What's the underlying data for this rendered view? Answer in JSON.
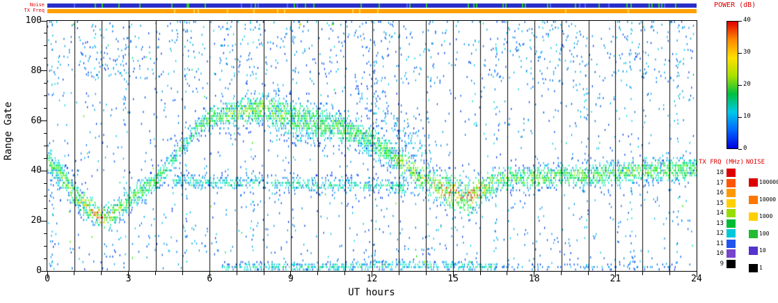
{
  "labels": {
    "x_axis": "UT hours",
    "y_axis": "Range Gate",
    "noise_strip": "Noise",
    "tx_strip": "TX Freq",
    "power_title": "POWER (dB)",
    "tx_title": "TX FRQ (MHz)",
    "noise_title": "NOISE"
  },
  "chart_data": {
    "type": "heatmap",
    "title": "",
    "xlabel": "UT hours",
    "ylabel": "Range Gate",
    "xlim": [
      0,
      24
    ],
    "ylim": [
      0,
      100
    ],
    "x_major_ticks": [
      0,
      3,
      6,
      9,
      12,
      15,
      18,
      21,
      24
    ],
    "x_minor_step": 1,
    "y_major_ticks": [
      0,
      20,
      40,
      60,
      80,
      100
    ],
    "y_minor_step": 5,
    "grid": "vertical-hour-lines",
    "hour_line_color": "#000000",
    "seed": 1337,
    "power_colorbar": {
      "title": "POWER (dB)",
      "min": 0,
      "max": 40,
      "ticks": [
        0,
        10,
        20,
        30,
        40
      ],
      "gradient": [
        "#0000e0",
        "#0066ff",
        "#00c8e8",
        "#00c040",
        "#a8e000",
        "#ffe000",
        "#ff8800",
        "#e00000"
      ]
    },
    "tx_colorbar": {
      "title": "TX FRQ (MHz)",
      "labels": [
        "18",
        "17",
        "16",
        "15",
        "14",
        "13",
        "12",
        "11",
        "10",
        "9"
      ],
      "colors": [
        "#dd0000",
        "#ff5500",
        "#ff9900",
        "#ffcf00",
        "#99dd00",
        "#00bb33",
        "#00c8d8",
        "#2255ee",
        "#7744cc",
        "#000000"
      ]
    },
    "noise_colorbar": {
      "title": "NOISE",
      "labels": [
        "100000",
        "10000",
        "1000",
        "100",
        "10",
        "1"
      ],
      "colors": [
        "#dd0000",
        "#ff7700",
        "#ffd000",
        "#22bb33",
        "#5533cc",
        "#000000"
      ]
    },
    "strips": {
      "noise_base": "#2a2ec8",
      "noise_speck": "#2ec82e",
      "noise_alt": "#5560ff",
      "tx_base": "#ffa000",
      "tx_speck": "#ffd24d"
    },
    "bands": [
      {
        "name": "main-echo-band",
        "fill": 0.6,
        "points": [
          [
            0,
            44
          ],
          [
            0.5,
            38
          ],
          [
            1,
            30
          ],
          [
            1.5,
            25
          ],
          [
            2,
            21
          ],
          [
            2.5,
            23
          ],
          [
            3,
            28
          ],
          [
            3.5,
            32
          ],
          [
            4,
            36
          ],
          [
            4.5,
            42
          ],
          [
            5,
            50
          ],
          [
            5.5,
            57
          ],
          [
            6,
            61
          ],
          [
            7,
            64
          ],
          [
            8,
            65
          ],
          [
            9,
            61
          ],
          [
            10,
            59
          ],
          [
            11,
            57
          ],
          [
            12,
            52
          ],
          [
            12.5,
            48
          ],
          [
            13,
            44
          ],
          [
            13.5,
            40
          ],
          [
            14,
            36
          ],
          [
            14.5,
            33
          ],
          [
            15,
            31
          ],
          [
            15.6,
            29
          ],
          [
            16.2,
            33
          ],
          [
            17,
            37
          ],
          [
            18,
            37
          ],
          [
            19,
            38
          ],
          [
            20,
            38
          ],
          [
            21,
            39
          ],
          [
            22,
            40
          ],
          [
            23,
            40
          ],
          [
            24,
            41
          ]
        ],
        "halfwidth": [
          [
            0,
            5
          ],
          [
            2,
            4
          ],
          [
            5,
            3.5
          ],
          [
            7,
            5
          ],
          [
            9,
            6.5
          ],
          [
            11,
            5.5
          ],
          [
            12.5,
            5
          ],
          [
            14,
            5
          ],
          [
            15.5,
            5.5
          ],
          [
            17,
            4
          ],
          [
            24,
            4
          ]
        ],
        "power": [
          [
            0,
            20
          ],
          [
            1,
            26
          ],
          [
            1.5,
            32
          ],
          [
            2,
            38
          ],
          [
            2.5,
            30
          ],
          [
            3,
            24
          ],
          [
            4,
            22
          ],
          [
            5,
            16
          ],
          [
            6,
            24
          ],
          [
            7,
            26
          ],
          [
            8,
            26
          ],
          [
            9,
            24
          ],
          [
            10,
            24
          ],
          [
            11,
            24
          ],
          [
            12,
            20
          ],
          [
            13,
            26
          ],
          [
            13.8,
            30
          ],
          [
            14.5,
            34
          ],
          [
            15,
            38
          ],
          [
            15.7,
            38
          ],
          [
            16.2,
            30
          ],
          [
            17,
            24
          ],
          [
            18,
            26
          ],
          [
            19,
            24
          ],
          [
            20,
            26
          ],
          [
            21,
            24
          ],
          [
            22,
            27
          ],
          [
            23,
            24
          ],
          [
            24,
            24
          ]
        ]
      },
      {
        "name": "lower-echo-band",
        "fill": 0.45,
        "points": [
          [
            4.6,
            36
          ],
          [
            6,
            35
          ],
          [
            8,
            35
          ],
          [
            10,
            34
          ],
          [
            12,
            34
          ],
          [
            13.2,
            33
          ]
        ],
        "halfwidth": [
          [
            4.6,
            2.5
          ],
          [
            13.2,
            2.5
          ]
        ],
        "power": [
          [
            4.6,
            14
          ],
          [
            8,
            16
          ],
          [
            12,
            16
          ],
          [
            13.2,
            18
          ]
        ]
      },
      {
        "name": "descending-scatter",
        "fill": 0.15,
        "points": [
          [
            11.4,
            72
          ],
          [
            12.4,
            62
          ],
          [
            13.4,
            53
          ],
          [
            14,
            48
          ]
        ],
        "halfwidth": [
          [
            11.4,
            6
          ],
          [
            14,
            6
          ]
        ],
        "power": [
          [
            11.4,
            9
          ],
          [
            14,
            9
          ]
        ]
      },
      {
        "name": "near-range-band",
        "fill": 0.5,
        "points": [
          [
            6.4,
            1
          ],
          [
            10,
            1
          ],
          [
            13,
            2
          ],
          [
            16.6,
            1
          ]
        ],
        "halfwidth": [
          [
            6.4,
            1.6
          ],
          [
            16.6,
            1.6
          ]
        ],
        "power": [
          [
            6.4,
            14
          ],
          [
            10,
            16
          ],
          [
            13,
            16
          ],
          [
            16.6,
            14
          ]
        ]
      },
      {
        "name": "near-range-late",
        "fill": 0.2,
        "points": [
          [
            16.8,
            1
          ],
          [
            23.4,
            1
          ]
        ],
        "halfwidth": [
          [
            16.8,
            1.3
          ],
          [
            23.4,
            1.3
          ]
        ],
        "power": [
          [
            16.8,
            8
          ],
          [
            23.4,
            8
          ]
        ]
      }
    ],
    "background": {
      "per_col_tries": 4,
      "try_prob": 0.5,
      "power": [
        2,
        9
      ],
      "hot_prob": 0.035,
      "hot_power": [
        10,
        26
      ]
    },
    "top_scatter": {
      "range": [
        76,
        101
      ],
      "prob": 0.5,
      "power": [
        2,
        9
      ],
      "clusters": [
        [
          1.3,
          3.2
        ],
        [
          6.3,
          8.6
        ],
        [
          11.2,
          13.2
        ],
        [
          16.4,
          19.6
        ],
        [
          20.8,
          23.2
        ]
      ],
      "cluster_boost": 2
    },
    "column_bursts": [
      0.18,
      2.85,
      5.1,
      7.55,
      9.1,
      12.1,
      14.1,
      16.55,
      19.9,
      21.55,
      23.3
    ],
    "hot_specks": [
      [
        9.32,
        99,
        34
      ],
      [
        10.5,
        99,
        27
      ],
      [
        0.95,
        99,
        24
      ],
      [
        13.9,
        3,
        30
      ],
      [
        12.4,
        2,
        28
      ]
    ]
  }
}
